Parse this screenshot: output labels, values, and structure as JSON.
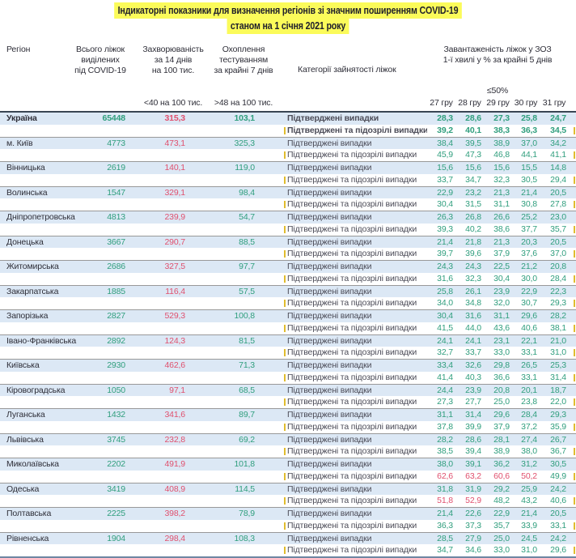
{
  "title": {
    "line1": "Індикаторні показники для визначення регіонів зі значним поширенням COVID-19",
    "line2": "станом на 1 січня 2021 року"
  },
  "header": {
    "region": "Регіон",
    "beds_lines": [
      "Всього ліжок",
      "виділених",
      "під COVID-19"
    ],
    "incidence_lines": [
      "Захворюваність",
      "за 14 днів",
      "на 100 тис."
    ],
    "testing_lines": [
      "Охоплення",
      "тестуванням",
      "за крайні 7 днів"
    ],
    "category": "Категорії зайнятості ліжок",
    "load_lines": [
      "Завантаженість ліжок у ЗОЗ",
      "1-ї хвилі у % за крайні 5 днів"
    ],
    "load_threshold": "≤50%",
    "threshold_low": "<40 на 100 тис.",
    "threshold_high": ">48 на 100 тис.",
    "dates": [
      "27 гру",
      "28 гру",
      "29 гру",
      "30 гру",
      "31 гру"
    ]
  },
  "categories": {
    "confirmed": "Підтверджені випадки",
    "confirmed_suspected": "Підтверджені та підозрілі випадки"
  },
  "colors": {
    "green": "#2f9e7d",
    "red": "#e0506e",
    "row_blue": "#dce8f5",
    "highlight_yellow": "#fbfb5a",
    "header_border": "#3a4654",
    "bottom_border": "#6e87a3",
    "group_border": "#999999",
    "tick_yellow": "#e0bc2e"
  },
  "red_threshold": 50,
  "rows": [
    {
      "region": "Україна",
      "bold": true,
      "beds": "65448",
      "incidence": "315,3",
      "testing": "103,1",
      "confirmed": [
        "28,3",
        "28,6",
        "27,3",
        "25,8",
        "24,7"
      ],
      "confirmed_suspected": [
        "39,2",
        "40,1",
        "38,3",
        "36,3",
        "34,5"
      ]
    },
    {
      "region": "м. Київ",
      "bold": false,
      "beds": "4773",
      "incidence": "473,1",
      "testing": "325,3",
      "confirmed": [
        "38,4",
        "39,5",
        "38,9",
        "37,0",
        "34,2"
      ],
      "confirmed_suspected": [
        "45,9",
        "47,3",
        "46,8",
        "44,1",
        "41,1"
      ]
    },
    {
      "region": "Вінницька",
      "bold": false,
      "beds": "2619",
      "incidence": "140,1",
      "testing": "119,0",
      "confirmed": [
        "15,6",
        "15,6",
        "15,6",
        "15,5",
        "14,8"
      ],
      "confirmed_suspected": [
        "33,7",
        "34,7",
        "32,3",
        "30,5",
        "29,4"
      ]
    },
    {
      "region": "Волинська",
      "bold": false,
      "beds": "1547",
      "incidence": "329,1",
      "testing": "98,4",
      "confirmed": [
        "22,9",
        "23,2",
        "21,3",
        "21,4",
        "20,5"
      ],
      "confirmed_suspected": [
        "30,4",
        "31,5",
        "31,1",
        "30,8",
        "27,8"
      ]
    },
    {
      "region": "Дніпропетровська",
      "bold": false,
      "beds": "4813",
      "incidence": "239,9",
      "testing": "54,7",
      "confirmed": [
        "26,3",
        "26,8",
        "26,6",
        "25,2",
        "23,0"
      ],
      "confirmed_suspected": [
        "39,3",
        "40,2",
        "38,6",
        "37,7",
        "35,7"
      ]
    },
    {
      "region": "Донецька",
      "bold": false,
      "beds": "3667",
      "incidence": "290,7",
      "testing": "88,5",
      "confirmed": [
        "21,4",
        "21,8",
        "21,3",
        "20,3",
        "20,5"
      ],
      "confirmed_suspected": [
        "39,7",
        "39,6",
        "37,9",
        "37,6",
        "37,0"
      ]
    },
    {
      "region": "Житомирська",
      "bold": false,
      "beds": "2686",
      "incidence": "327,5",
      "testing": "97,7",
      "confirmed": [
        "24,3",
        "24,3",
        "22,5",
        "21,2",
        "20,8"
      ],
      "confirmed_suspected": [
        "31,6",
        "32,3",
        "30,4",
        "30,0",
        "28,4"
      ]
    },
    {
      "region": "Закарпатська",
      "bold": false,
      "beds": "1885",
      "incidence": "116,4",
      "testing": "57,5",
      "confirmed": [
        "25,8",
        "26,1",
        "23,9",
        "22,9",
        "22,3"
      ],
      "confirmed_suspected": [
        "34,0",
        "34,8",
        "32,0",
        "30,7",
        "29,3"
      ]
    },
    {
      "region": "Запорізька",
      "bold": false,
      "beds": "2827",
      "incidence": "529,3",
      "testing": "100,8",
      "confirmed": [
        "30,4",
        "31,6",
        "31,1",
        "29,6",
        "28,2"
      ],
      "confirmed_suspected": [
        "41,5",
        "44,0",
        "43,6",
        "40,6",
        "38,1"
      ]
    },
    {
      "region": "Івано-Франківська",
      "bold": false,
      "beds": "2892",
      "incidence": "124,3",
      "testing": "81,5",
      "confirmed": [
        "24,1",
        "24,1",
        "23,1",
        "22,1",
        "21,0"
      ],
      "confirmed_suspected": [
        "32,7",
        "33,7",
        "33,0",
        "33,1",
        "31,0"
      ]
    },
    {
      "region": "Київська",
      "bold": false,
      "beds": "2930",
      "incidence": "462,6",
      "testing": "71,3",
      "confirmed": [
        "33,4",
        "32,6",
        "29,8",
        "26,5",
        "25,3"
      ],
      "confirmed_suspected": [
        "41,4",
        "40,3",
        "36,6",
        "33,1",
        "31,4"
      ]
    },
    {
      "region": "Кіровоградська",
      "bold": false,
      "beds": "1050",
      "incidence": "97,1",
      "testing": "68,5",
      "confirmed": [
        "24,4",
        "23,9",
        "20,8",
        "20,1",
        "18,7"
      ],
      "confirmed_suspected": [
        "27,3",
        "27,7",
        "25,0",
        "23,8",
        "22,0"
      ]
    },
    {
      "region": "Луганська",
      "bold": false,
      "beds": "1432",
      "incidence": "341,6",
      "testing": "89,7",
      "confirmed": [
        "31,1",
        "31,4",
        "29,6",
        "28,4",
        "29,3"
      ],
      "confirmed_suspected": [
        "37,8",
        "39,9",
        "37,9",
        "37,2",
        "35,9"
      ]
    },
    {
      "region": "Львівська",
      "bold": false,
      "beds": "3745",
      "incidence": "232,8",
      "testing": "69,2",
      "confirmed": [
        "28,2",
        "28,6",
        "28,1",
        "27,4",
        "26,7"
      ],
      "confirmed_suspected": [
        "38,5",
        "39,4",
        "38,9",
        "38,0",
        "36,7"
      ]
    },
    {
      "region": "Миколаївська",
      "bold": false,
      "beds": "2202",
      "incidence": "491,9",
      "testing": "101,8",
      "confirmed": [
        "38,0",
        "39,1",
        "36,2",
        "31,2",
        "30,5"
      ],
      "confirmed_suspected": [
        "62,6",
        "63,2",
        "60,6",
        "50,2",
        "49,9"
      ]
    },
    {
      "region": "Одеська",
      "bold": false,
      "beds": "3419",
      "incidence": "408,9",
      "testing": "114,5",
      "confirmed": [
        "31,8",
        "31,9",
        "29,2",
        "25,9",
        "24,2"
      ],
      "confirmed_suspected": [
        "51,8",
        "52,9",
        "48,2",
        "43,2",
        "40,6"
      ]
    },
    {
      "region": "Полтавська",
      "bold": false,
      "beds": "2225",
      "incidence": "398,2",
      "testing": "78,9",
      "confirmed": [
        "21,4",
        "22,6",
        "22,9",
        "21,4",
        "20,5"
      ],
      "confirmed_suspected": [
        "36,3",
        "37,3",
        "35,7",
        "33,9",
        "33,1"
      ]
    },
    {
      "region": "Рівненська",
      "bold": false,
      "beds": "1904",
      "incidence": "298,4",
      "testing": "108,3",
      "confirmed": [
        "28,5",
        "27,9",
        "25,0",
        "24,5",
        "24,2"
      ],
      "confirmed_suspected": [
        "34,7",
        "34,6",
        "33,0",
        "31,0",
        "29,6"
      ]
    }
  ]
}
